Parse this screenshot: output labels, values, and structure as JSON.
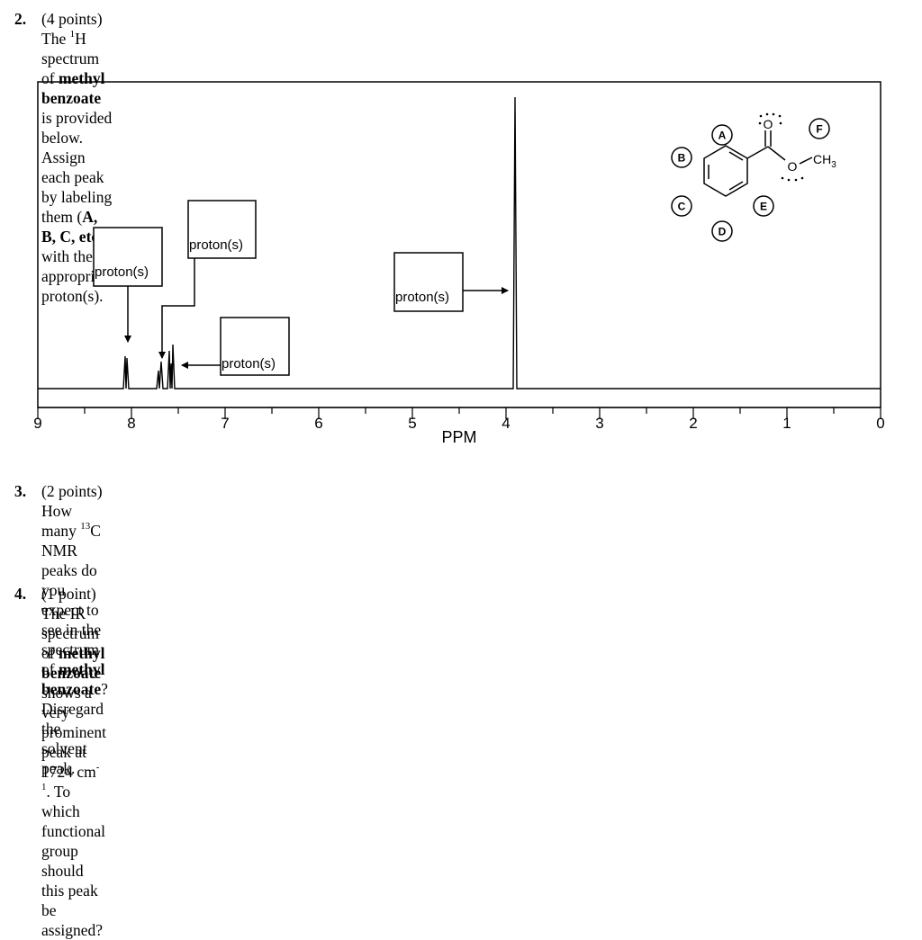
{
  "q2": {
    "number": "2.",
    "pre": "(4 points) The ",
    "sup": "1",
    "mid": "H spectrum of ",
    "bold1": "methyl benzoate",
    "post": " is provided below. Assign each peak by labeling them (",
    "bold2": "A, B, C, etc.",
    "end": ")",
    "line2": "with the appropriate proton(s)."
  },
  "spectrum": {
    "axis_label": "PPM",
    "ticks": [
      "9",
      "8",
      "7",
      "6",
      "5",
      "4",
      "3",
      "2",
      "1",
      "0"
    ],
    "box_label": "proton(s)",
    "labels": [
      "A",
      "B",
      "C",
      "D",
      "E",
      "F"
    ],
    "ch3": "CH",
    "ch3_sub": "3",
    "o_carbonyl": "O",
    "o_ether": "O"
  },
  "q3": {
    "number": "3.",
    "pre": "(2 points) How many ",
    "sup": "13",
    "mid": "C NMR peaks do you expect to see in the spectrum of ",
    "bold": "methyl benzoate",
    "post": "? Disregard the",
    "line2": "solvent peak."
  },
  "q4": {
    "number": "4.",
    "pre": "(1 point) The IR spectrum of ",
    "bold": "methyl benzoate",
    "mid": " shows a very prominent peak at 1724 cm",
    "sup": "-1",
    "post": ". To which functional group",
    "line2": "should this peak be assigned?"
  }
}
